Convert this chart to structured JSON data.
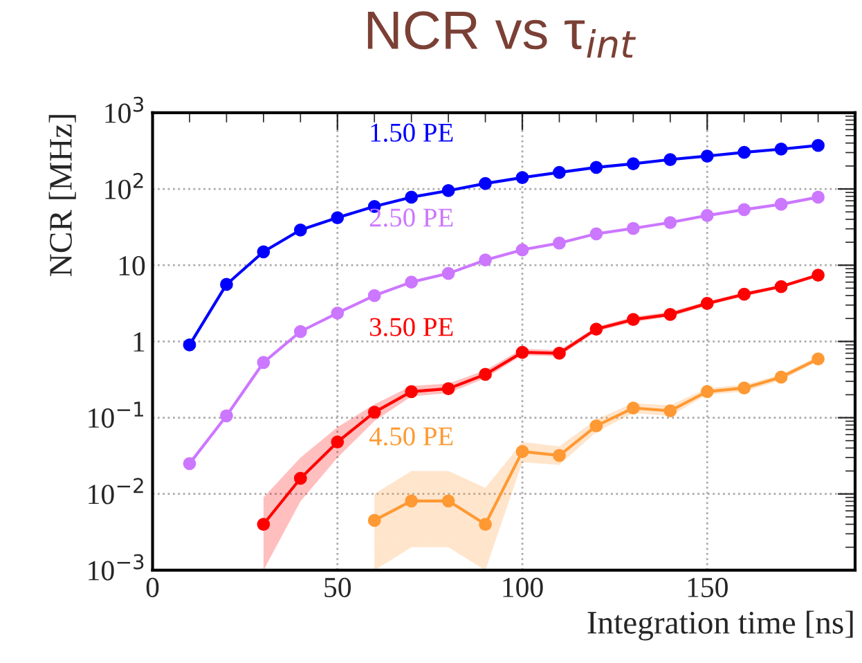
{
  "chart_data": {
    "type": "line",
    "title": "NCR vs τ$_{int}$",
    "xlabel": "Integration time [ns]",
    "ylabel": "NCR [MHz]",
    "x": [
      10,
      20,
      30,
      40,
      50,
      60,
      70,
      80,
      90,
      100,
      110,
      120,
      130,
      140,
      150,
      160,
      170,
      180
    ],
    "series": [
      {
        "name": "1.50 PE",
        "color": "#0000ff",
        "values": [
          0.9,
          5.6,
          15,
          29,
          42,
          59,
          78,
          95,
          118,
          141,
          165,
          192,
          214,
          243,
          270,
          302,
          333,
          372
        ]
      },
      {
        "name": "2.50 PE",
        "color": "#cc77ff",
        "values": [
          0.025,
          0.106,
          0.53,
          1.35,
          2.36,
          4.0,
          6.0,
          7.8,
          11.7,
          15.9,
          19.5,
          25.8,
          30.4,
          36.3,
          44.9,
          53.6,
          63,
          78
        ]
      },
      {
        "name": "3.50 PE",
        "color": "#ff0000",
        "values": [
          null,
          null,
          0.004,
          0.016,
          0.048,
          0.118,
          0.22,
          0.24,
          0.37,
          0.72,
          0.7,
          1.45,
          1.94,
          2.26,
          3.15,
          4.16,
          5.25,
          7.4
        ],
        "lower": [
          null,
          null,
          0.001,
          0.008,
          0.03,
          0.09,
          0.19,
          0.21,
          0.33,
          0.66,
          0.64,
          1.35,
          1.8,
          2.1,
          2.95,
          3.9,
          5.0,
          7.0
        ],
        "upper": [
          null,
          null,
          0.009,
          0.03,
          0.075,
          0.15,
          0.26,
          0.28,
          0.42,
          0.8,
          0.77,
          1.55,
          2.1,
          2.45,
          3.35,
          4.4,
          5.5,
          7.8
        ]
      },
      {
        "name": "4.50 PE",
        "color": "#ff9933",
        "values": [
          null,
          null,
          null,
          null,
          null,
          0.0045,
          0.0081,
          0.0081,
          0.004,
          0.036,
          0.032,
          0.078,
          0.134,
          0.123,
          0.22,
          0.245,
          0.34,
          0.59
        ],
        "lower": [
          null,
          null,
          null,
          null,
          null,
          0.001,
          0.002,
          0.002,
          0.001,
          0.026,
          0.024,
          0.065,
          0.115,
          0.105,
          0.2,
          0.22,
          0.31,
          0.55
        ],
        "upper": [
          null,
          null,
          null,
          null,
          null,
          0.01,
          0.02,
          0.02,
          0.012,
          0.048,
          0.042,
          0.095,
          0.155,
          0.145,
          0.245,
          0.27,
          0.37,
          0.64
        ]
      }
    ],
    "log": "y",
    "xlim": [
      0,
      190
    ],
    "xticks": [
      0,
      50,
      100,
      150
    ],
    "ylim": [
      0.001,
      1000
    ],
    "yticks": [
      {
        "value": 0.001,
        "label": "10$^{−3}$"
      },
      {
        "value": 0.01,
        "label": "10$^{−2}$"
      },
      {
        "value": 0.1,
        "label": "10$^{−1}$"
      },
      1,
      10,
      {
        "value": 100,
        "label": "10$^{2}$"
      },
      {
        "value": 1000,
        "label": "10$^{3}$"
      }
    ],
    "grid": true,
    "marker": "circle",
    "line_style": "solid",
    "legend": false
  }
}
